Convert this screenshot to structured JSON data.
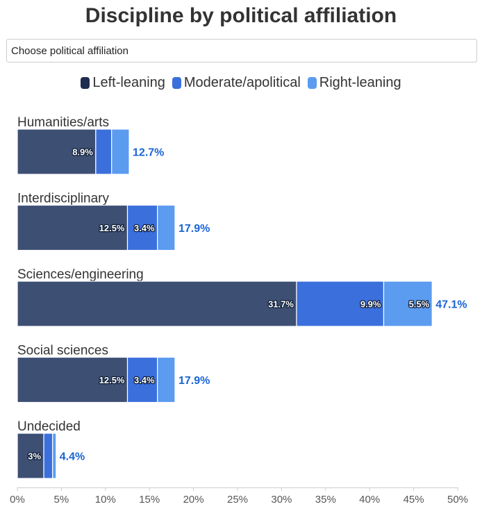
{
  "title": "Discipline by political affiliation",
  "dropdown": {
    "label": "Choose political affiliation"
  },
  "legend": [
    {
      "label": "Left-leaning",
      "color": "#1e2d50"
    },
    {
      "label": "Moderate/apolitical",
      "color": "#3b6fdc"
    },
    {
      "label": "Right-leaning",
      "color": "#5b9bf0"
    }
  ],
  "chart_data": {
    "type": "bar",
    "orientation": "horizontal",
    "stacked": true,
    "categories": [
      "Humanities/arts",
      "Interdisciplinary",
      "Sciences/engineering",
      "Social sciences",
      "Undecided"
    ],
    "series": [
      {
        "name": "Left-leaning",
        "color": "#3d4f73",
        "values": [
          8.9,
          12.5,
          31.7,
          12.5,
          3.0
        ],
        "labels": [
          "8.9%",
          "12.5%",
          "31.7%",
          "12.5%",
          "3%"
        ]
      },
      {
        "name": "Moderate/apolitical",
        "color": "#3b6fdc",
        "values": [
          1.8,
          3.4,
          9.9,
          3.4,
          1.0
        ],
        "labels": [
          "",
          "3.4%",
          "9.9%",
          "3.4%",
          ""
        ]
      },
      {
        "name": "Right-leaning",
        "color": "#5b9bf0",
        "values": [
          2.0,
          2.0,
          5.5,
          2.0,
          0.4
        ],
        "labels": [
          "",
          "",
          "5.5%",
          "",
          ""
        ]
      }
    ],
    "totals": [
      "12.7%",
      "17.9%",
      "47.1%",
      "17.9%",
      "4.4%"
    ],
    "total_values": [
      12.7,
      17.9,
      47.1,
      17.9,
      4.4
    ],
    "xlim": [
      0,
      50
    ],
    "xticks": [
      "0%",
      "5%",
      "10%",
      "15%",
      "20%",
      "25%",
      "30%",
      "35%",
      "40%",
      "45%",
      "50%"
    ],
    "grid": false,
    "legend_position": "top-center"
  }
}
